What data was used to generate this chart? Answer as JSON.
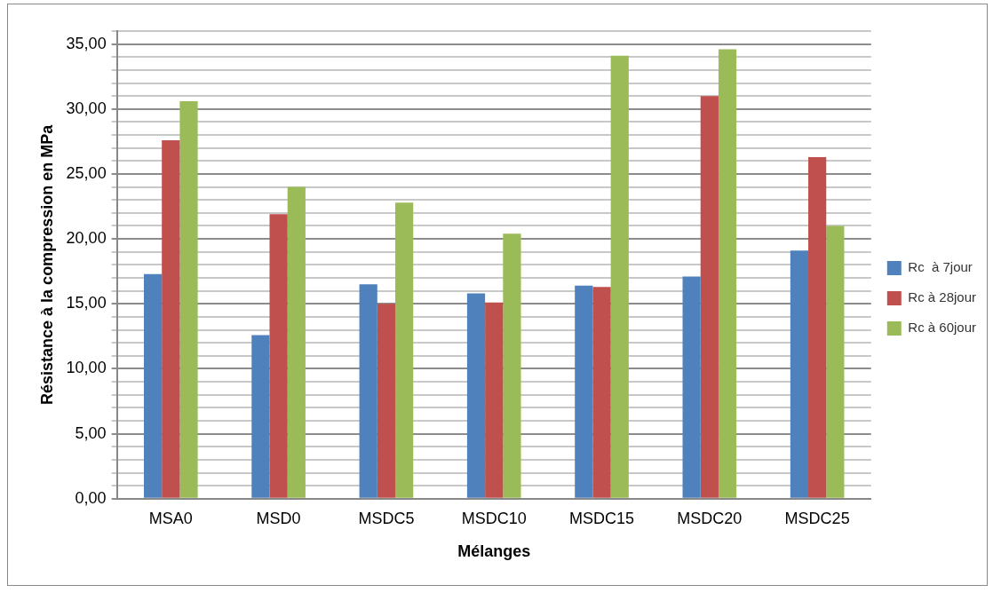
{
  "chart_data": {
    "type": "bar",
    "xlabel": "Mélanges",
    "ylabel": "Résistance à la compression en MPa",
    "categories": [
      "MSA0",
      "MSD0",
      "MSDC5",
      "MSDC10",
      "MSDC15",
      "MSDC20",
      "MSDC25"
    ],
    "series": [
      {
        "name": "Rc  à 7jour",
        "color": "#4f81bd",
        "values": [
          17.3,
          12.6,
          16.5,
          15.8,
          16.4,
          17.1,
          19.1
        ]
      },
      {
        "name": "Rc à 28jour",
        "color": "#c0504d",
        "values": [
          27.6,
          21.9,
          15.0,
          15.1,
          16.3,
          31.0,
          26.3
        ]
      },
      {
        "name": "Rc à 60jour",
        "color": "#9bbb59",
        "values": [
          30.6,
          24.0,
          22.8,
          20.4,
          34.1,
          34.6,
          21.0
        ]
      }
    ],
    "ylim": [
      0,
      36
    ],
    "yticks": [
      {
        "value": 0,
        "label": "0,00"
      },
      {
        "value": 1,
        "label": null
      },
      {
        "value": 2,
        "label": null
      },
      {
        "value": 3,
        "label": null
      },
      {
        "value": 4,
        "label": null
      },
      {
        "value": 5,
        "label": "5,00"
      },
      {
        "value": 6,
        "label": null
      },
      {
        "value": 7,
        "label": null
      },
      {
        "value": 8,
        "label": null
      },
      {
        "value": 9,
        "label": null
      },
      {
        "value": 10,
        "label": "10,00"
      },
      {
        "value": 11,
        "label": null
      },
      {
        "value": 12,
        "label": null
      },
      {
        "value": 13,
        "label": null
      },
      {
        "value": 14,
        "label": null
      },
      {
        "value": 15,
        "label": "15,00"
      },
      {
        "value": 16,
        "label": null
      },
      {
        "value": 17,
        "label": null
      },
      {
        "value": 18,
        "label": null
      },
      {
        "value": 19,
        "label": null
      },
      {
        "value": 20,
        "label": "20,00"
      },
      {
        "value": 21,
        "label": null
      },
      {
        "value": 22,
        "label": null
      },
      {
        "value": 23,
        "label": null
      },
      {
        "value": 24,
        "label": null
      },
      {
        "value": 25,
        "label": "25,00"
      },
      {
        "value": 26,
        "label": null
      },
      {
        "value": 27,
        "label": null
      },
      {
        "value": 28,
        "label": null
      },
      {
        "value": 29,
        "label": null
      },
      {
        "value": 30,
        "label": "30,00"
      },
      {
        "value": 31,
        "label": null
      },
      {
        "value": 32,
        "label": null
      },
      {
        "value": 33,
        "label": null
      },
      {
        "value": 34,
        "label": null
      },
      {
        "value": 35,
        "label": "35,00"
      },
      {
        "value": 36,
        "label": null
      }
    ],
    "grid": "y",
    "legend": "right"
  }
}
